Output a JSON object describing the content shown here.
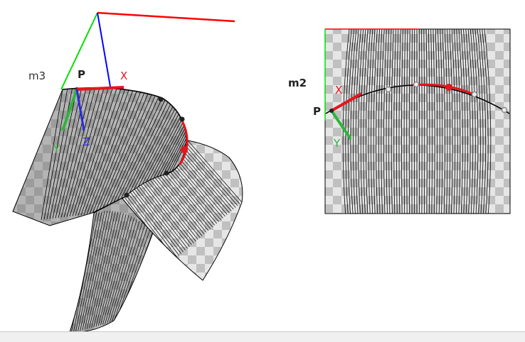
{
  "views": {
    "left": {
      "surface_label": "m3",
      "point_label": "P",
      "axes": {
        "x_label": "X",
        "y_label": "Y",
        "z_label": "Z"
      }
    },
    "right": {
      "surface_label": "m2",
      "point_label": "P",
      "axes": {
        "x_label": "X",
        "y_label": "Y"
      }
    }
  },
  "colors": {
    "axis_x": "#e8141e",
    "axis_y": "#2db43c",
    "axis_z": "#2a2ae0",
    "frame_x": "#ff0000",
    "frame_y": "#00e000",
    "frame_z": "#0000ff",
    "label_dark": "#222222",
    "label_m3": "#333333",
    "checker_light": "#e6e6e6",
    "checker_dark": "#bdbdbd",
    "hatch": "#000000"
  }
}
